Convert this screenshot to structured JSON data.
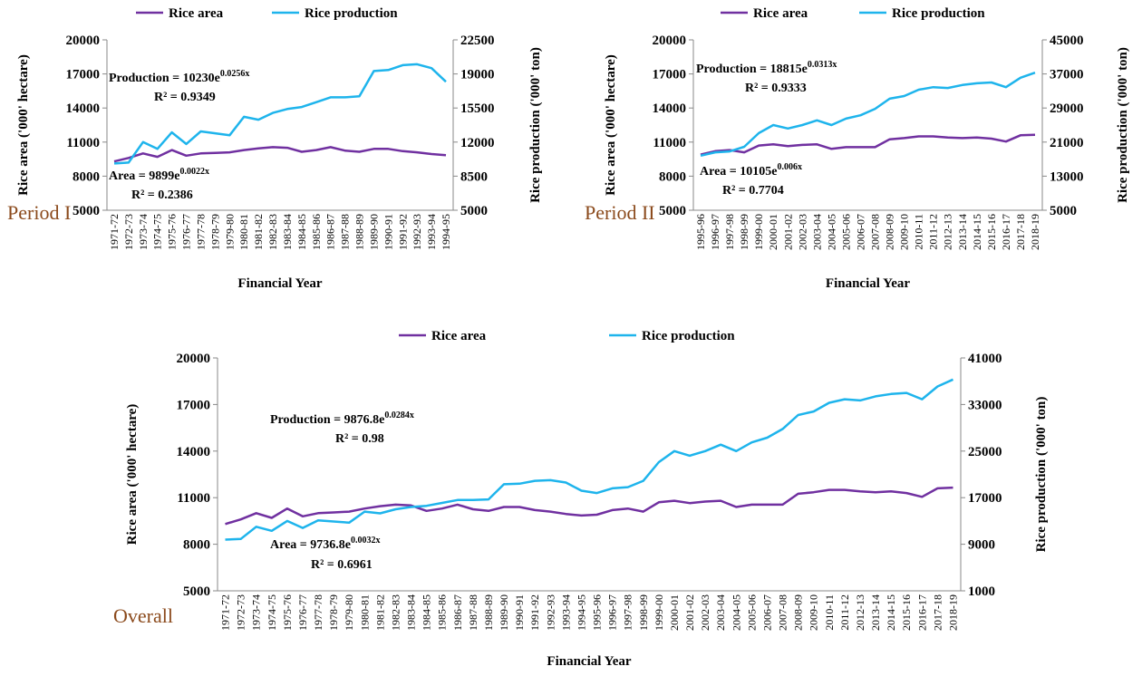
{
  "chart_data": [
    {
      "type": "line",
      "label": "Period I",
      "x_label": "Financial Year",
      "y_label": "Rice area ('000' hectare)",
      "y2_label": "Rice production ('000' ton)",
      "categories": [
        "1971-72",
        "1972-73",
        "1973-74",
        "1974-75",
        "1975-76",
        "1976-77",
        "1977-78",
        "1978-79",
        "1979-80",
        "1980-81",
        "1981-82",
        "1982-83",
        "1983-84",
        "1984-85",
        "1985-86",
        "1986-87",
        "1987-88",
        "1988-89",
        "1989-90",
        "1990-91",
        "1991-92",
        "1992-93",
        "1993-94",
        "1994-95"
      ],
      "series": [
        {
          "name": "Rice area",
          "color": "#7030a0",
          "values": [
            9300,
            9600,
            10000,
            9700,
            10300,
            9800,
            10000,
            10050,
            10100,
            10300,
            10450,
            10550,
            10500,
            10150,
            10300,
            10550,
            10250,
            10150,
            10400,
            10400,
            10200,
            10100,
            9950,
            9850
          ]
        },
        {
          "name": "Rice production",
          "color": "#1eb4ec",
          "axis": "y2",
          "values": [
            9800,
            9900,
            12000,
            11300,
            13000,
            11800,
            13100,
            12900,
            12700,
            14600,
            14300,
            15000,
            15400,
            15600,
            16100,
            16600,
            16600,
            16700,
            19300,
            19400,
            19900,
            20000,
            19600,
            18200
          ]
        }
      ],
      "ylim": [
        5000,
        20000
      ],
      "yticks": [
        5000,
        8000,
        11000,
        14000,
        17000,
        20000
      ],
      "y2lim": [
        5000,
        22500
      ],
      "y2ticks": [
        5000,
        8500,
        12000,
        15500,
        19000,
        22500
      ],
      "annotations": [
        {
          "text": "Production = 10230e",
          "exponent": "0.0256x",
          "r2": "R² = 0.9349"
        },
        {
          "text": "Area = 9899e",
          "exponent": "0.0022x",
          "r2": "R² = 0.2386"
        }
      ]
    },
    {
      "type": "line",
      "label": "Period II",
      "x_label": "Financial Year",
      "y_label": "Rice area ('000' hectare)",
      "y2_label": "Rice production ('000' ton)",
      "categories": [
        "1995-96",
        "1996-97",
        "1997-98",
        "1998-99",
        "1999-00",
        "2000-01",
        "2001-02",
        "2002-03",
        "2003-04",
        "2004-05",
        "2005-06",
        "2006-07",
        "2007-08",
        "2008-09",
        "2009-10",
        "2010-11",
        "2011-12",
        "2012-13",
        "2013-14",
        "2014-15",
        "2015-16",
        "2016-17",
        "2017-18",
        "2018-19"
      ],
      "series": [
        {
          "name": "Rice area",
          "color": "#7030a0",
          "values": [
            9900,
            10200,
            10300,
            10100,
            10700,
            10800,
            10650,
            10750,
            10800,
            10400,
            10550,
            10550,
            10550,
            11250,
            11350,
            11500,
            11500,
            11400,
            11350,
            11400,
            11300,
            11050,
            11600,
            11650
          ]
        },
        {
          "name": "Rice production",
          "color": "#1eb4ec",
          "axis": "y2",
          "values": [
            17800,
            18600,
            18800,
            19900,
            23100,
            25000,
            24200,
            25000,
            26100,
            25000,
            26500,
            27300,
            28800,
            31200,
            31800,
            33300,
            33900,
            33700,
            34400,
            34800,
            35000,
            33900,
            36100,
            37300
          ]
        }
      ],
      "ylim": [
        5000,
        20000
      ],
      "yticks": [
        5000,
        8000,
        11000,
        14000,
        17000,
        20000
      ],
      "y2lim": [
        5000,
        45000
      ],
      "y2ticks": [
        5000,
        13000,
        21000,
        29000,
        37000,
        45000
      ],
      "annotations": [
        {
          "text": "Production = 18815e",
          "exponent": "0.0313x",
          "r2": "R² = 0.9333"
        },
        {
          "text": "Area = 10105e",
          "exponent": "0.006x",
          "r2": "R² = 0.7704"
        }
      ]
    },
    {
      "type": "line",
      "label": "Overall",
      "x_label": "Financial Year",
      "y_label": "Rice area ('000' hectare)",
      "y2_label": "Rice production ('000' ton)",
      "categories": [
        "1971-72",
        "1972-73",
        "1973-74",
        "1974-75",
        "1975-76",
        "1976-77",
        "1977-78",
        "1978-79",
        "1979-80",
        "1980-81",
        "1981-82",
        "1982-83",
        "1983-84",
        "1984-85",
        "1985-86",
        "1986-87",
        "1987-88",
        "1988-89",
        "1989-90",
        "1990-91",
        "1991-92",
        "1992-93",
        "1993-94",
        "1994-95",
        "1995-96",
        "1996-97",
        "1997-98",
        "1998-99",
        "1999-00",
        "2000-01",
        "2001-02",
        "2002-03",
        "2003-04",
        "2004-05",
        "2005-06",
        "2006-07",
        "2007-08",
        "2008-09",
        "2009-10",
        "2010-11",
        "2011-12",
        "2012-13",
        "2013-14",
        "2014-15",
        "2015-16",
        "2016-17",
        "2017-18",
        "2018-19"
      ],
      "series": [
        {
          "name": "Rice area",
          "color": "#7030a0",
          "values": [
            9300,
            9600,
            10000,
            9700,
            10300,
            9800,
            10000,
            10050,
            10100,
            10300,
            10450,
            10550,
            10500,
            10150,
            10300,
            10550,
            10250,
            10150,
            10400,
            10400,
            10200,
            10100,
            9950,
            9850,
            9900,
            10200,
            10300,
            10100,
            10700,
            10800,
            10650,
            10750,
            10800,
            10400,
            10550,
            10550,
            10550,
            11250,
            11350,
            11500,
            11500,
            11400,
            11350,
            11400,
            11300,
            11050,
            11600,
            11650
          ]
        },
        {
          "name": "Rice production",
          "color": "#1eb4ec",
          "axis": "y2",
          "values": [
            9800,
            9900,
            12000,
            11300,
            13000,
            11800,
            13100,
            12900,
            12700,
            14600,
            14300,
            15000,
            15400,
            15600,
            16100,
            16600,
            16600,
            16700,
            19300,
            19400,
            19900,
            20000,
            19600,
            18200,
            17800,
            18600,
            18800,
            19900,
            23100,
            25000,
            24200,
            25000,
            26100,
            25000,
            26500,
            27300,
            28800,
            31200,
            31800,
            33300,
            33900,
            33700,
            34400,
            34800,
            35000,
            33900,
            36100,
            37300
          ]
        }
      ],
      "ylim": [
        5000,
        20000
      ],
      "yticks": [
        5000,
        8000,
        11000,
        14000,
        17000,
        20000
      ],
      "y2lim": [
        1000,
        41000
      ],
      "y2ticks": [
        1000,
        9000,
        17000,
        25000,
        33000,
        41000
      ],
      "annotations": [
        {
          "text": "Production = 9876.8e",
          "exponent": "0.0284x",
          "r2": "R² = 0.98"
        },
        {
          "text": "Area = 9736.8e",
          "exponent": "0.0032x",
          "r2": "R² = 0.6961"
        }
      ]
    }
  ]
}
